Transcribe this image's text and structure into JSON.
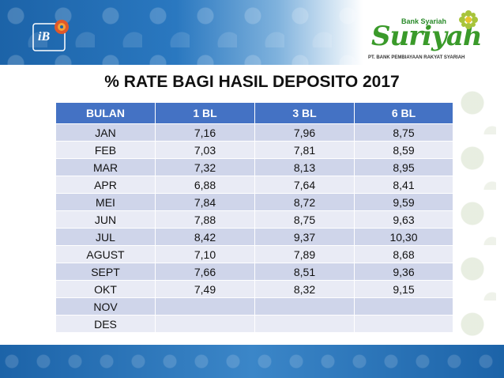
{
  "header": {
    "left_logo_text": "iB",
    "right_logo": {
      "small": "Bank Syariah",
      "name": "Suriyah",
      "tagline": "PT. BANK PEMBIAYAAN RAKYAT SYARIAH"
    }
  },
  "title": "% RATE BAGI HASIL DEPOSITO 2017",
  "table": {
    "headers": [
      "BULAN",
      "1 BL",
      "3 BL",
      "6 BL"
    ],
    "rows": [
      [
        "JAN",
        "7,16",
        "7,96",
        "8,75"
      ],
      [
        "FEB",
        "7,03",
        "7,81",
        "8,59"
      ],
      [
        "MAR",
        "7,32",
        "8,13",
        "8,95"
      ],
      [
        "APR",
        "6,88",
        "7,64",
        "8,41"
      ],
      [
        "MEI",
        "7,84",
        "8,72",
        "9,59"
      ],
      [
        "JUN",
        "7,88",
        "8,75",
        "9,63"
      ],
      [
        "JUL",
        "8,42",
        "9,37",
        "10,30"
      ],
      [
        "AGUST",
        "7,10",
        "7,89",
        "8,68"
      ],
      [
        "SEPT",
        "7,66",
        "8,51",
        "9,36"
      ],
      [
        "OKT",
        "7,49",
        "8,32",
        "9,15"
      ],
      [
        "NOV",
        "",
        "",
        ""
      ],
      [
        "DES",
        "",
        "",
        ""
      ]
    ]
  },
  "colors": {
    "header_bg": "#4472c4",
    "row_odd": "#cfd5ea",
    "row_even": "#e9ebf5",
    "band_blue": "#1c63a8"
  }
}
